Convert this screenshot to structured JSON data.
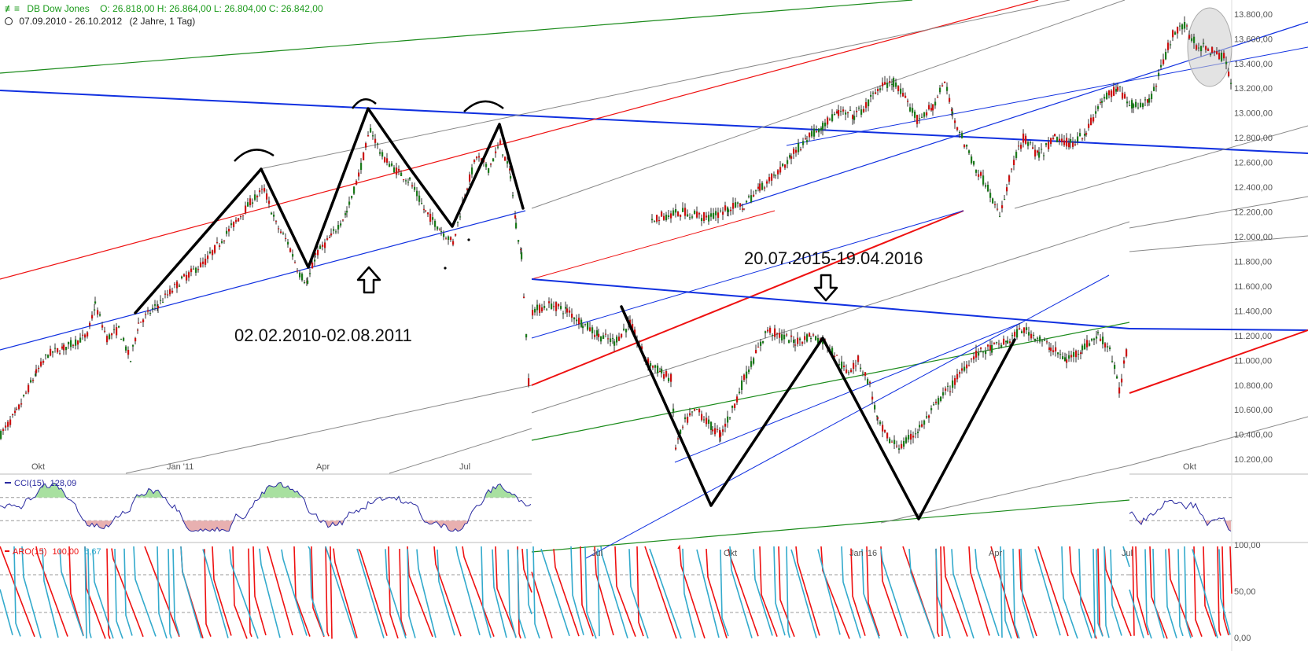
{
  "header": {
    "logo": "≢≡",
    "instrument": "DB Dow Jones",
    "ohlc": "O: 26.818,00  H: 26.864,00  L: 26.804,00  C: 26.842,00",
    "period": "07.09.2010 - 26.10.2012",
    "range": "(2 Jahre, 1 Tag)"
  },
  "indicators": {
    "cci": {
      "name": "CCI(15)",
      "value": "128,09"
    },
    "aro": {
      "name": "ARO(15)",
      "value1": "100,00",
      "value2": "6,67"
    }
  },
  "annotations": {
    "left_range": "02.02.2010-02.08.2011",
    "right_range": "20.07.2015-19.04.2016"
  },
  "colors": {
    "up": "#1a7a1a",
    "down": "#cc1111",
    "wick": "#333333",
    "channel_blue": "#1030e0",
    "channel_red": "#ee1111",
    "channel_gray": "#888888",
    "channel_green": "#1a8a1a",
    "pattern": "#000000",
    "aroon_up": "#ee1111",
    "aroon_down": "#33aacc",
    "cci_line": "#2a2aa0",
    "cci_pos_fill": "#a8e0a0",
    "cci_neg_fill": "#e8b0b0"
  },
  "chart_data": [
    {
      "type": "candlestick",
      "panel": "price-left",
      "ytick_labels": [
        "13.800,00",
        "13.600,00",
        "13.400,00",
        "13.200,00",
        "13.000,00",
        "12.800,00",
        "12.600,00",
        "12.400,00",
        "12.200,00",
        "12.000,00",
        "11.800,00",
        "11.600,00",
        "11.400,00",
        "11.200,00",
        "11.000,00",
        "10.800,00",
        "10.600,00",
        "10.400,00",
        "10.200,00"
      ],
      "yticks": [
        13800,
        13600,
        13400,
        13200,
        13000,
        12800,
        12600,
        12400,
        12200,
        12000,
        11800,
        11600,
        11400,
        11200,
        11000,
        10800,
        10600,
        10400,
        10200
      ],
      "ylim": [
        10150,
        13850
      ],
      "xtick_labels": [
        "Okt",
        "Jan '11",
        "Apr",
        "Jul"
      ],
      "path": [
        [
          0,
          10400
        ],
        [
          20,
          10580
        ],
        [
          45,
          10900
        ],
        [
          60,
          11050
        ],
        [
          80,
          11100
        ],
        [
          95,
          11150
        ],
        [
          110,
          11200
        ],
        [
          120,
          11450
        ],
        [
          135,
          11180
        ],
        [
          150,
          11250
        ],
        [
          165,
          11000
        ],
        [
          175,
          11300
        ],
        [
          200,
          11450
        ],
        [
          230,
          11650
        ],
        [
          260,
          11800
        ],
        [
          290,
          12050
        ],
        [
          320,
          12300
        ],
        [
          335,
          12380
        ],
        [
          350,
          12100
        ],
        [
          365,
          11950
        ],
        [
          380,
          11700
        ],
        [
          390,
          11620
        ],
        [
          400,
          11850
        ],
        [
          420,
          12000
        ],
        [
          440,
          12200
        ],
        [
          455,
          12500
        ],
        [
          470,
          12870
        ],
        [
          485,
          12650
        ],
        [
          500,
          12550
        ],
        [
          520,
          12450
        ],
        [
          540,
          12200
        ],
        [
          560,
          12050
        ],
        [
          575,
          11950
        ],
        [
          590,
          12350
        ],
        [
          605,
          12650
        ],
        [
          620,
          12550
        ],
        [
          635,
          12750
        ],
        [
          648,
          12500
        ],
        [
          655,
          12100
        ],
        [
          662,
          11850
        ],
        [
          668,
          11200
        ],
        [
          672,
          10700
        ]
      ]
    },
    {
      "type": "candlestick",
      "panel": "price-middle",
      "ylim": [
        10150,
        13850
      ],
      "path": [
        [
          676,
          11400
        ],
        [
          700,
          11450
        ],
        [
          720,
          11400
        ],
        [
          740,
          11300
        ],
        [
          760,
          11200
        ],
        [
          780,
          11150
        ],
        [
          800,
          11300
        ],
        [
          820,
          11000
        ],
        [
          840,
          10900
        ],
        [
          852,
          10850
        ],
        [
          858,
          10300
        ],
        [
          870,
          10500
        ],
        [
          885,
          10600
        ],
        [
          905,
          10450
        ],
        [
          915,
          10400
        ],
        [
          930,
          10600
        ],
        [
          945,
          10850
        ],
        [
          960,
          11050
        ],
        [
          975,
          11250
        ],
        [
          990,
          11200
        ],
        [
          1010,
          11150
        ],
        [
          1030,
          11200
        ],
        [
          1048,
          11150
        ],
        [
          1060,
          11050
        ],
        [
          1075,
          10900
        ],
        [
          1090,
          11000
        ],
        [
          1105,
          10800
        ],
        [
          1115,
          10500
        ],
        [
          1130,
          10350
        ],
        [
          1145,
          10300
        ],
        [
          1160,
          10400
        ],
        [
          1168,
          10450
        ],
        [
          1180,
          10550
        ],
        [
          1195,
          10700
        ],
        [
          1210,
          10800
        ],
        [
          1225,
          10950
        ],
        [
          1240,
          11050
        ],
        [
          1260,
          11100
        ],
        [
          1280,
          11150
        ],
        [
          1298,
          11250
        ],
        [
          1315,
          11200
        ],
        [
          1335,
          11100
        ],
        [
          1355,
          11000
        ],
        [
          1375,
          11100
        ],
        [
          1395,
          11200
        ],
        [
          1410,
          11100
        ],
        [
          1422,
          10750
        ],
        [
          1432,
          11100
        ]
      ]
    },
    {
      "type": "candlestick",
      "panel": "price-upper",
      "ylim": [
        10150,
        13850
      ],
      "path": [
        [
          828,
          12150
        ],
        [
          870,
          12200
        ],
        [
          900,
          12150
        ],
        [
          925,
          12230
        ],
        [
          945,
          12250
        ],
        [
          965,
          12400
        ],
        [
          985,
          12500
        ],
        [
          1005,
          12650
        ],
        [
          1025,
          12800
        ],
        [
          1045,
          12900
        ],
        [
          1065,
          13000
        ],
        [
          1085,
          12980
        ],
        [
          1100,
          13050
        ],
        [
          1115,
          13200
        ],
        [
          1135,
          13250
        ],
        [
          1150,
          13100
        ],
        [
          1165,
          12950
        ],
        [
          1185,
          13050
        ],
        [
          1200,
          13250
        ],
        [
          1210,
          13000
        ],
        [
          1225,
          12750
        ],
        [
          1240,
          12550
        ],
        [
          1255,
          12400
        ],
        [
          1270,
          12150
        ],
        [
          1285,
          12550
        ],
        [
          1300,
          12800
        ],
        [
          1320,
          12650
        ],
        [
          1340,
          12800
        ],
        [
          1360,
          12750
        ],
        [
          1380,
          12850
        ],
        [
          1400,
          13100
        ],
        [
          1420,
          13200
        ],
        [
          1440,
          13050
        ],
        [
          1460,
          13100
        ],
        [
          1475,
          13350
        ],
        [
          1490,
          13650
        ],
        [
          1505,
          13700
        ],
        [
          1520,
          13550
        ],
        [
          1540,
          13500
        ],
        [
          1555,
          13450
        ],
        [
          1566,
          13200
        ]
      ]
    },
    {
      "type": "line",
      "panel": "cci",
      "xtick_labels": [
        "Okt",
        "Jan '11",
        "Apr",
        "Jul"
      ],
      "ylim": [
        -200,
        250
      ],
      "reference_lines": [
        100,
        -100
      ]
    },
    {
      "type": "line",
      "panel": "aroon",
      "ylim": [
        0,
        100
      ],
      "reference_lines": [
        70,
        30
      ],
      "xtick_labels_middle": [
        "Jul",
        "Okt",
        "Jan '16",
        "Apr",
        "Jul"
      ],
      "xtick_labels_right": [
        "Okt"
      ],
      "ytick_labels_right": [
        "100,00",
        "50,00",
        "0,00"
      ]
    }
  ]
}
